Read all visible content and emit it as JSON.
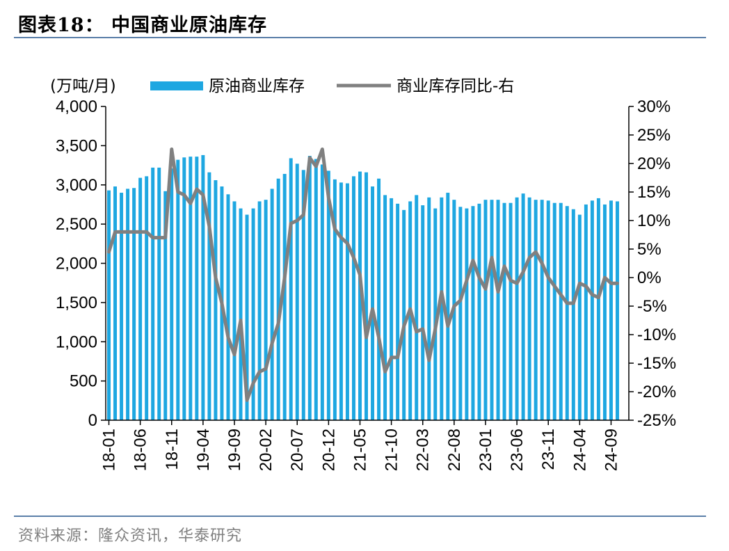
{
  "figure": {
    "title": "图表18：  中国商业原油库存",
    "source": "资料来源：隆众资讯，华泰研究"
  },
  "chart_data": {
    "type": "bar+line",
    "unit_label": "(万吨/月)",
    "categories": [
      "18-01",
      "18-02",
      "18-03",
      "18-04",
      "18-05",
      "18-06",
      "18-07",
      "18-08",
      "18-09",
      "18-10",
      "18-11",
      "18-12",
      "19-01",
      "19-02",
      "19-03",
      "19-04",
      "19-05",
      "19-06",
      "19-07",
      "19-08",
      "19-09",
      "19-10",
      "19-11",
      "19-12",
      "20-01",
      "20-02",
      "20-03",
      "20-04",
      "20-05",
      "20-06",
      "20-07",
      "20-08",
      "20-09",
      "20-10",
      "20-11",
      "20-12",
      "21-01",
      "21-02",
      "21-03",
      "21-04",
      "21-05",
      "21-06",
      "21-07",
      "21-08",
      "21-09",
      "21-10",
      "21-11",
      "21-12",
      "22-01",
      "22-02",
      "22-03",
      "22-04",
      "22-05",
      "22-06",
      "22-07",
      "22-08",
      "22-09",
      "22-10",
      "22-11",
      "22-12",
      "23-01",
      "23-02",
      "23-03",
      "23-04",
      "23-05",
      "23-06",
      "23-07",
      "23-08",
      "23-09",
      "23-10",
      "23-11",
      "23-12",
      "24-01",
      "24-02",
      "24-03",
      "24-04",
      "24-05",
      "24-06",
      "24-07",
      "24-08",
      "24-09",
      "24-10"
    ],
    "xtick_labels": [
      "18-01",
      "18-06",
      "18-11",
      "19-04",
      "19-09",
      "20-02",
      "20-07",
      "20-12",
      "21-05",
      "21-10",
      "22-03",
      "22-08",
      "23-01",
      "23-06",
      "23-11",
      "24-04",
      "24-09"
    ],
    "series": [
      {
        "name": "原油商业库存",
        "type": "bar",
        "axis": "left",
        "color": "#1ea7e1",
        "values": [
          2930,
          2980,
          2900,
          2950,
          2960,
          3090,
          3110,
          3220,
          3220,
          2920,
          3210,
          3320,
          3350,
          3360,
          3360,
          3380,
          3160,
          3060,
          2980,
          2880,
          2790,
          2700,
          2620,
          2700,
          2790,
          2810,
          2950,
          3080,
          3140,
          3340,
          3270,
          3190,
          3370,
          3330,
          3260,
          3180,
          3070,
          3030,
          3020,
          3110,
          3170,
          3160,
          2980,
          3080,
          2870,
          2830,
          2760,
          2680,
          2790,
          2870,
          2740,
          2840,
          2700,
          2840,
          2900,
          2810,
          2720,
          2700,
          2730,
          2760,
          2810,
          2810,
          2810,
          2770,
          2770,
          2840,
          2890,
          2840,
          2810,
          2810,
          2800,
          2770,
          2770,
          2730,
          2690,
          2620,
          2750,
          2800,
          2830,
          2750,
          2800,
          2790
        ]
      },
      {
        "name": "商业库存同比-右",
        "type": "line",
        "axis": "right",
        "color": "#808080",
        "values": [
          4.5,
          8,
          8,
          8,
          8,
          8,
          8,
          7,
          7,
          7,
          22.5,
          15,
          14.5,
          13,
          15.5,
          14.5,
          9,
          0,
          -4.5,
          -10.5,
          -13.5,
          -7.5,
          -21.5,
          -18.5,
          -16.5,
          -16,
          -11.5,
          -8,
          0,
          9.5,
          10,
          11,
          21,
          19.5,
          22.5,
          14,
          8.5,
          7,
          6,
          3.5,
          0.5,
          -10.5,
          -5.5,
          -10.5,
          -16.5,
          -14,
          -14,
          -8.5,
          -5.5,
          -9.5,
          -9,
          -14.5,
          -9,
          -2.5,
          -8.5,
          -5,
          -4,
          -0.5,
          3,
          0,
          -2,
          3.5,
          -2.5,
          2,
          -0.5,
          -1,
          1,
          3.5,
          4.5,
          2.5,
          0,
          -1.5,
          -3,
          -4.5,
          -4.5,
          -1,
          -1.5,
          -3,
          -3.5,
          0,
          -1,
          -1
        ]
      }
    ],
    "left_axis": {
      "min": 0,
      "max": 4000,
      "step": 500,
      "tick_labels": [
        "0",
        "500",
        "1,000",
        "1,500",
        "2,000",
        "2,500",
        "3,000",
        "3,500",
        "4,000"
      ]
    },
    "right_axis": {
      "min": -25,
      "max": 30,
      "step": 5,
      "tick_labels": [
        "-25%",
        "-20%",
        "-15%",
        "-10%",
        "-5%",
        "0%",
        "5%",
        "10%",
        "15%",
        "20%",
        "25%",
        "30%"
      ]
    },
    "legend_position": "top"
  }
}
